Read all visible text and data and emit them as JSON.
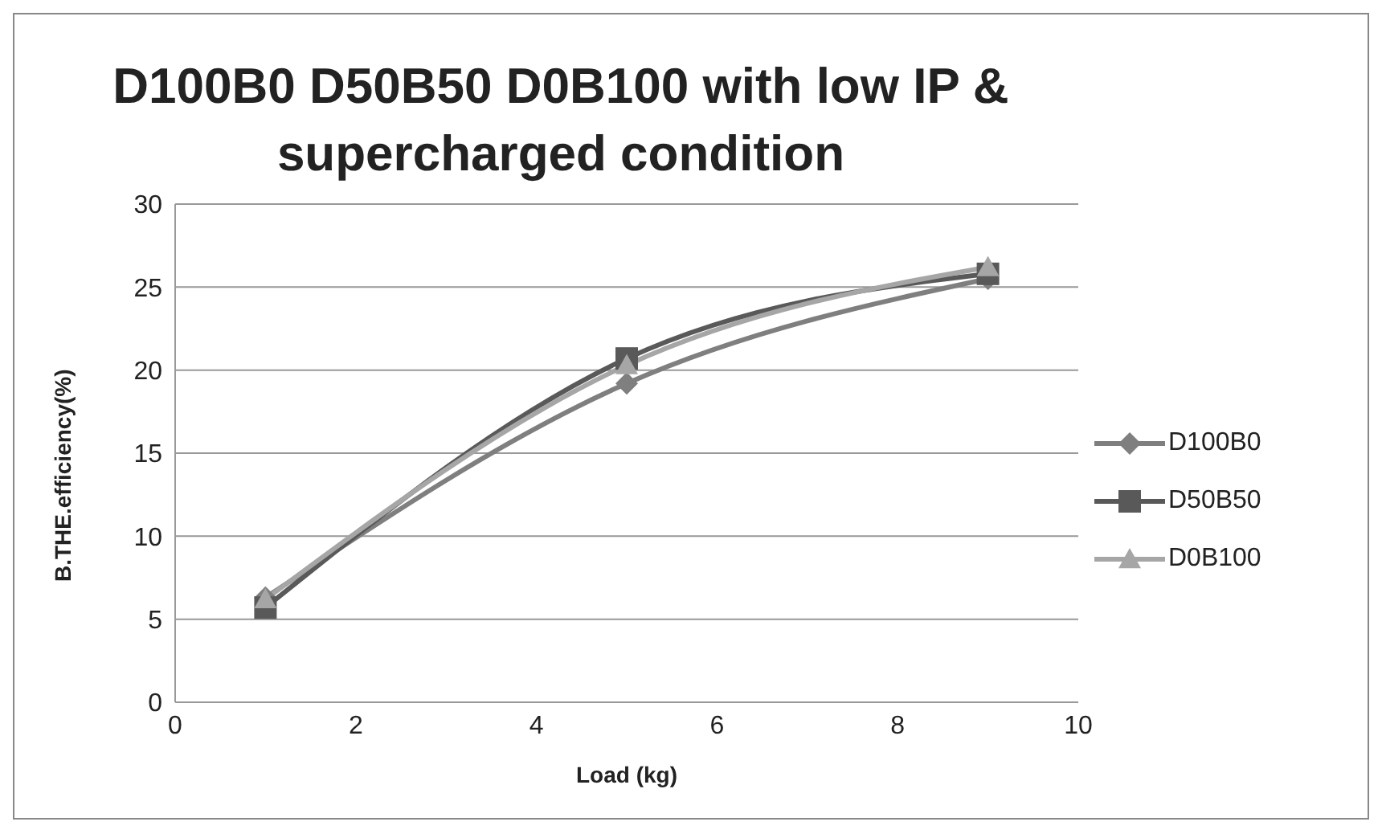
{
  "chart_data": {
    "type": "line",
    "title": "D100B0 D50B50 D0B100 with low IP & supercharged condition",
    "xlabel": "Load (kg)",
    "ylabel": "B.THE.efficiency(%)",
    "x": [
      1,
      5,
      9
    ],
    "series": [
      {
        "name": "D100B0",
        "color": "#7f7f7f",
        "marker": "diamond",
        "values": [
          6.3,
          19.2,
          25.5
        ]
      },
      {
        "name": "D50B50",
        "color": "#595959",
        "marker": "square",
        "values": [
          5.7,
          20.7,
          25.8
        ]
      },
      {
        "name": "D0B100",
        "color": "#a6a6a6",
        "marker": "triangle",
        "values": [
          6.2,
          20.3,
          26.2
        ]
      }
    ],
    "xlim": [
      0,
      10
    ],
    "xticks": [
      0,
      2,
      4,
      6,
      8,
      10
    ],
    "ylim": [
      0,
      30
    ],
    "yticks": [
      0,
      5,
      10,
      15,
      20,
      25,
      30
    ],
    "grid": "y",
    "legend": "right",
    "line_style": "solid"
  }
}
